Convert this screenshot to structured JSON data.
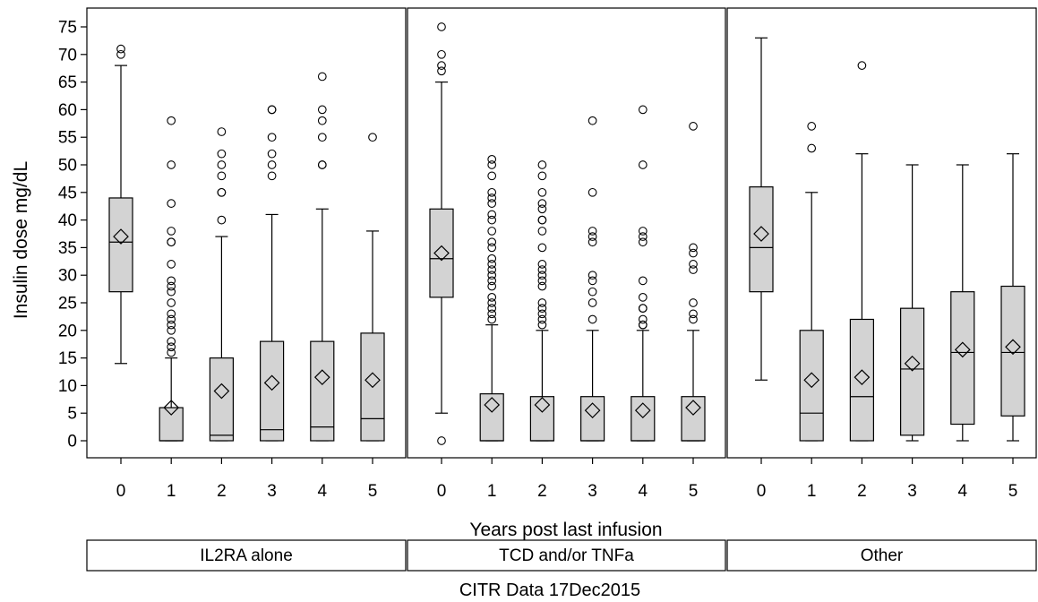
{
  "chart_data": {
    "type": "box",
    "ylabel": "Insulin dose mg/dL",
    "xlabel": "Years post last infusion",
    "footer": "CITR  Data 17Dec2015",
    "ylim": [
      -3,
      77
    ],
    "yticks": [
      0,
      5,
      10,
      15,
      20,
      25,
      30,
      35,
      40,
      45,
      50,
      55,
      60,
      65,
      70,
      75
    ],
    "categories": [
      "0",
      "1",
      "2",
      "3",
      "4",
      "5"
    ],
    "groups": [
      {
        "name": "IL2RA alone",
        "boxes": [
          {
            "category": "0",
            "whisker_low": 14,
            "q1": 27,
            "median": 36,
            "q3": 44,
            "whisker_high": 68,
            "mean": 37,
            "outliers": [
              70,
              71
            ]
          },
          {
            "category": "1",
            "whisker_low": 0,
            "q1": 0,
            "median": 0,
            "q3": 6,
            "whisker_high": 15,
            "mean": 6,
            "outliers": [
              16,
              17,
              18,
              20,
              21,
              22,
              23,
              25,
              27,
              28,
              29,
              32,
              36,
              36,
              38,
              43,
              50,
              58
            ]
          },
          {
            "category": "2",
            "whisker_low": 0,
            "q1": 0,
            "median": 1,
            "q3": 15,
            "whisker_high": 37,
            "mean": 9,
            "outliers": [
              40,
              45,
              45,
              48,
              50,
              52,
              56
            ]
          },
          {
            "category": "3",
            "whisker_low": 0,
            "q1": 0,
            "median": 2,
            "q3": 18,
            "whisker_high": 41,
            "mean": 10.5,
            "outliers": [
              48,
              50,
              52,
              55,
              60,
              60
            ]
          },
          {
            "category": "4",
            "whisker_low": 0,
            "q1": 0,
            "median": 2.5,
            "q3": 18,
            "whisker_high": 42,
            "mean": 11.5,
            "outliers": [
              50,
              50,
              55,
              58,
              60,
              66
            ]
          },
          {
            "category": "5",
            "whisker_low": 0,
            "q1": 0,
            "median": 4,
            "q3": 19.5,
            "whisker_high": 38,
            "mean": 11,
            "outliers": [
              55
            ]
          }
        ]
      },
      {
        "name": "TCD and/or TNFa",
        "boxes": [
          {
            "category": "0",
            "whisker_low": 5,
            "q1": 26,
            "median": 33,
            "q3": 42,
            "whisker_high": 65,
            "mean": 34,
            "outliers": [
              0,
              67,
              68,
              70,
              75
            ]
          },
          {
            "category": "1",
            "whisker_low": 0,
            "q1": 0,
            "median": 0,
            "q3": 8.5,
            "whisker_high": 21,
            "mean": 6.5,
            "outliers": [
              22,
              23,
              24,
              25,
              26,
              28,
              29,
              30,
              31,
              32,
              33,
              35,
              36,
              38,
              40,
              41,
              43,
              44,
              45,
              48,
              50,
              51
            ]
          },
          {
            "category": "2",
            "whisker_low": 0,
            "q1": 0,
            "median": 0,
            "q3": 8,
            "whisker_high": 20,
            "mean": 6.5,
            "outliers": [
              21,
              22,
              23,
              24,
              25,
              28,
              29,
              30,
              31,
              32,
              35,
              38,
              40,
              40,
              42,
              43,
              45,
              48,
              50
            ]
          },
          {
            "category": "3",
            "whisker_low": 0,
            "q1": 0,
            "median": 0,
            "q3": 8,
            "whisker_high": 20,
            "mean": 5.5,
            "outliers": [
              22,
              25,
              27,
              29,
              30,
              36,
              37,
              38,
              45,
              58
            ]
          },
          {
            "category": "4",
            "whisker_low": 0,
            "q1": 0,
            "median": 0,
            "q3": 8,
            "whisker_high": 20,
            "mean": 5.5,
            "outliers": [
              21,
              21,
              22,
              24,
              24,
              26,
              29,
              36,
              37,
              38,
              50,
              60
            ]
          },
          {
            "category": "5",
            "whisker_low": 0,
            "q1": 0,
            "median": 0,
            "q3": 8,
            "whisker_high": 20,
            "mean": 6,
            "outliers": [
              22,
              23,
              25,
              31,
              32,
              34,
              35,
              57
            ]
          }
        ]
      },
      {
        "name": "Other",
        "boxes": [
          {
            "category": "0",
            "whisker_low": 11,
            "q1": 27,
            "median": 35,
            "q3": 46,
            "whisker_high": 73,
            "mean": 37.5,
            "outliers": []
          },
          {
            "category": "1",
            "whisker_low": 0,
            "q1": 0,
            "median": 5,
            "q3": 20,
            "whisker_high": 45,
            "mean": 11,
            "outliers": [
              53,
              57
            ]
          },
          {
            "category": "2",
            "whisker_low": 0,
            "q1": 0,
            "median": 8,
            "q3": 22,
            "whisker_high": 52,
            "mean": 11.5,
            "outliers": [
              68
            ]
          },
          {
            "category": "3",
            "whisker_low": 0,
            "q1": 1,
            "median": 13,
            "q3": 24,
            "whisker_high": 50,
            "mean": 14,
            "outliers": []
          },
          {
            "category": "4",
            "whisker_low": 0,
            "q1": 3,
            "median": 16,
            "q3": 27,
            "whisker_high": 50,
            "mean": 16.5,
            "outliers": []
          },
          {
            "category": "5",
            "whisker_low": 0,
            "q1": 4.5,
            "median": 16,
            "q3": 28,
            "whisker_high": 52,
            "mean": 17,
            "outliers": []
          }
        ]
      }
    ],
    "colors": {
      "box_fill": "#d3d3d3",
      "stroke": "#000000",
      "background": "#ffffff"
    }
  }
}
